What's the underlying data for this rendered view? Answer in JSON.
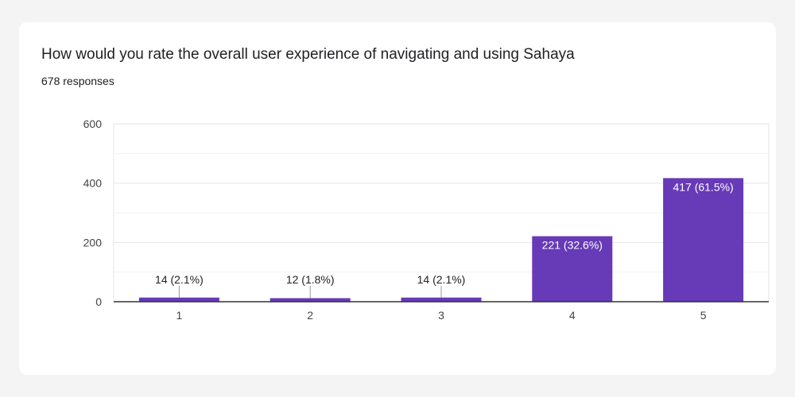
{
  "card": {
    "title": "How would you rate the overall user experience of navigating and using Sahaya",
    "responses": "678 responses"
  },
  "colors": {
    "bar": "#673ab7",
    "grid": "#e6e6e6",
    "axis": "#333333",
    "text": "#444444",
    "background": "#f4f4f4",
    "card": "#ffffff"
  },
  "chart_data": {
    "type": "bar",
    "categories": [
      "1",
      "2",
      "3",
      "4",
      "5"
    ],
    "values": [
      14,
      12,
      14,
      221,
      417
    ],
    "data_labels": [
      "14 (2.1%)",
      "12 (1.8%)",
      "14 (2.1%)",
      "221 (32.6%)",
      "417 (61.5%)"
    ],
    "y_ticks": [
      "0",
      "200",
      "400",
      "600"
    ],
    "ylim": [
      0,
      600
    ],
    "grid": true,
    "minor_grid": true,
    "legend": "none"
  }
}
